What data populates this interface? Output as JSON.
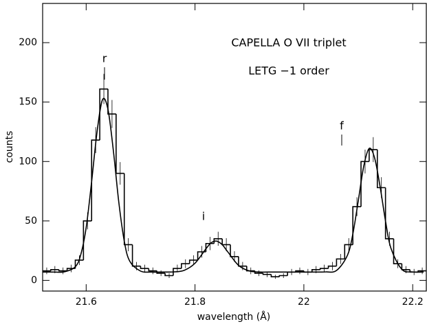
{
  "chart_data": {
    "type": "histogram",
    "title": "CAPELLA O VII triplet",
    "subtitle": "LETG −1 order",
    "line_labels": [
      "r",
      "i",
      "f"
    ],
    "x_label": "wavelength (Å)",
    "y_label": "counts",
    "color": "#000000",
    "bins": [
      21.52,
      21.535,
      21.55,
      21.565,
      21.58,
      21.595,
      21.61,
      21.625,
      21.64,
      21.655,
      21.67,
      21.685,
      21.7,
      21.715,
      21.73,
      21.745,
      21.76,
      21.775,
      21.79,
      21.805,
      21.82,
      21.835,
      21.85,
      21.865,
      21.88,
      21.895,
      21.91,
      21.925,
      21.94,
      21.955,
      21.97,
      21.985,
      22,
      22.015,
      22.03,
      22.045,
      22.06,
      22.075,
      22.09,
      22.105,
      22.12,
      22.135,
      22.15,
      22.165,
      22.18,
      22.195,
      22.21,
      22.225
    ],
    "values": [
      8,
      9,
      8,
      10,
      17,
      50,
      118,
      161,
      140,
      90,
      30,
      12,
      10,
      8,
      6,
      4,
      10,
      14,
      17,
      24,
      31,
      35,
      30,
      20,
      12,
      8,
      6,
      5,
      3,
      4,
      7,
      8,
      7,
      9,
      10,
      12,
      18,
      30,
      62,
      100,
      110,
      78,
      35,
      14,
      9,
      7,
      8
    ],
    "errors": [
      2.8,
      3,
      2.8,
      3.2,
      4.1,
      7.1,
      10.9,
      12.7,
      11.8,
      9.5,
      5.5,
      3.5,
      3.2,
      2.8,
      2.4,
      2,
      3.2,
      3.7,
      4.1,
      4.9,
      5.6,
      5.9,
      5.5,
      4.5,
      3.5,
      2.8,
      2.4,
      2.2,
      1.7,
      2,
      2.6,
      2.8,
      2.6,
      3,
      3.2,
      3.5,
      4.2,
      5.5,
      7.9,
      10,
      10.5,
      8.8,
      5.9,
      3.7,
      3,
      2.6,
      2.8
    ],
    "fit": {
      "x": [
        21.52,
        21.54,
        21.56,
        21.58,
        21.59,
        21.6,
        21.61,
        21.62,
        21.63,
        21.64,
        21.65,
        21.66,
        21.67,
        21.68,
        21.7,
        21.72,
        21.74,
        21.76,
        21.78,
        21.8,
        21.82,
        21.83,
        21.84,
        21.85,
        21.86,
        21.88,
        21.9,
        21.92,
        21.94,
        21.96,
        21.98,
        22,
        22.02,
        22.04,
        22.06,
        22.08,
        22.09,
        22.1,
        22.11,
        22.12,
        22.13,
        22.14,
        22.15,
        22.16,
        22.18,
        22.2,
        22.22
      ],
      "y": [
        7,
        7,
        7.2,
        11.4,
        21.5,
        44.4,
        83,
        125,
        152,
        144,
        109,
        65.6,
        33,
        16.2,
        7.8,
        7,
        7,
        7.1,
        8.4,
        14.4,
        26.5,
        31.7,
        33,
        30,
        24.1,
        12.6,
        7.9,
        7,
        7,
        7,
        7,
        7,
        7,
        7.1,
        8.3,
        21,
        39,
        67,
        96,
        111,
        103,
        79,
        50,
        27,
        9.3,
        7.1,
        7
      ]
    },
    "xlim": [
      21.52,
      22.225
    ],
    "ylim": [
      -9,
      233
    ],
    "xticks": [
      21.6,
      21.8,
      22,
      22.2
    ],
    "yticks": [
      0,
      50,
      100,
      150,
      200
    ]
  }
}
